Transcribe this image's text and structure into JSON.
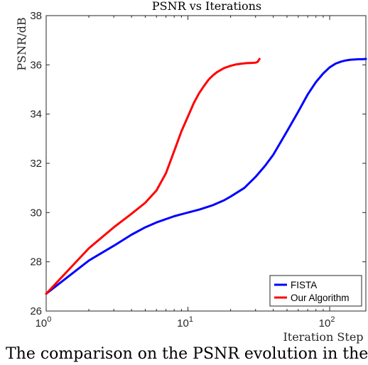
{
  "chart_data": {
    "type": "line",
    "title": "PSNR vs Iterations",
    "xlabel": "Iteration Step",
    "ylabel": "PSNR/dB",
    "xscale": "log",
    "xlim": [
      1,
      180
    ],
    "ylim": [
      26,
      38
    ],
    "x_tick_labels": [
      {
        "base": "10",
        "exp": "0",
        "value": 1
      },
      {
        "base": "10",
        "exp": "1",
        "value": 10
      },
      {
        "base": "10",
        "exp": "2",
        "value": 100
      }
    ],
    "y_ticks": [
      26,
      28,
      30,
      32,
      34,
      36,
      38
    ],
    "grid": false,
    "legend_position": "bottom-right",
    "series": [
      {
        "name": "FISTA",
        "color": "#0000ff",
        "x": [
          1,
          2,
          3,
          4,
          5,
          6,
          8,
          10,
          12,
          15,
          18,
          20,
          25,
          30,
          35,
          40,
          50,
          60,
          70,
          80,
          90,
          100,
          110,
          120,
          130,
          140,
          150,
          160,
          170,
          180
        ],
        "y": [
          26.7,
          28.05,
          28.65,
          29.1,
          29.4,
          29.6,
          29.85,
          30.0,
          30.12,
          30.3,
          30.5,
          30.65,
          31.0,
          31.45,
          31.9,
          32.35,
          33.3,
          34.1,
          34.8,
          35.3,
          35.65,
          35.9,
          36.05,
          36.13,
          36.18,
          36.21,
          36.22,
          36.23,
          36.23,
          36.24
        ]
      },
      {
        "name": "Our Algorithm",
        "color": "#ff0000",
        "x": [
          1,
          2,
          3,
          4,
          5,
          6,
          7,
          8,
          9,
          10,
          11,
          12,
          13,
          14,
          15,
          16,
          18,
          20,
          22,
          24,
          26,
          28,
          30,
          31,
          32
        ],
        "y": [
          26.7,
          28.55,
          29.4,
          29.95,
          30.4,
          30.9,
          31.6,
          32.5,
          33.3,
          33.9,
          34.45,
          34.85,
          35.15,
          35.4,
          35.57,
          35.7,
          35.87,
          35.96,
          36.02,
          36.05,
          36.07,
          36.08,
          36.09,
          36.12,
          36.24
        ]
      }
    ]
  },
  "caption_fragment": "The comparison on the PSNR evolution in the"
}
